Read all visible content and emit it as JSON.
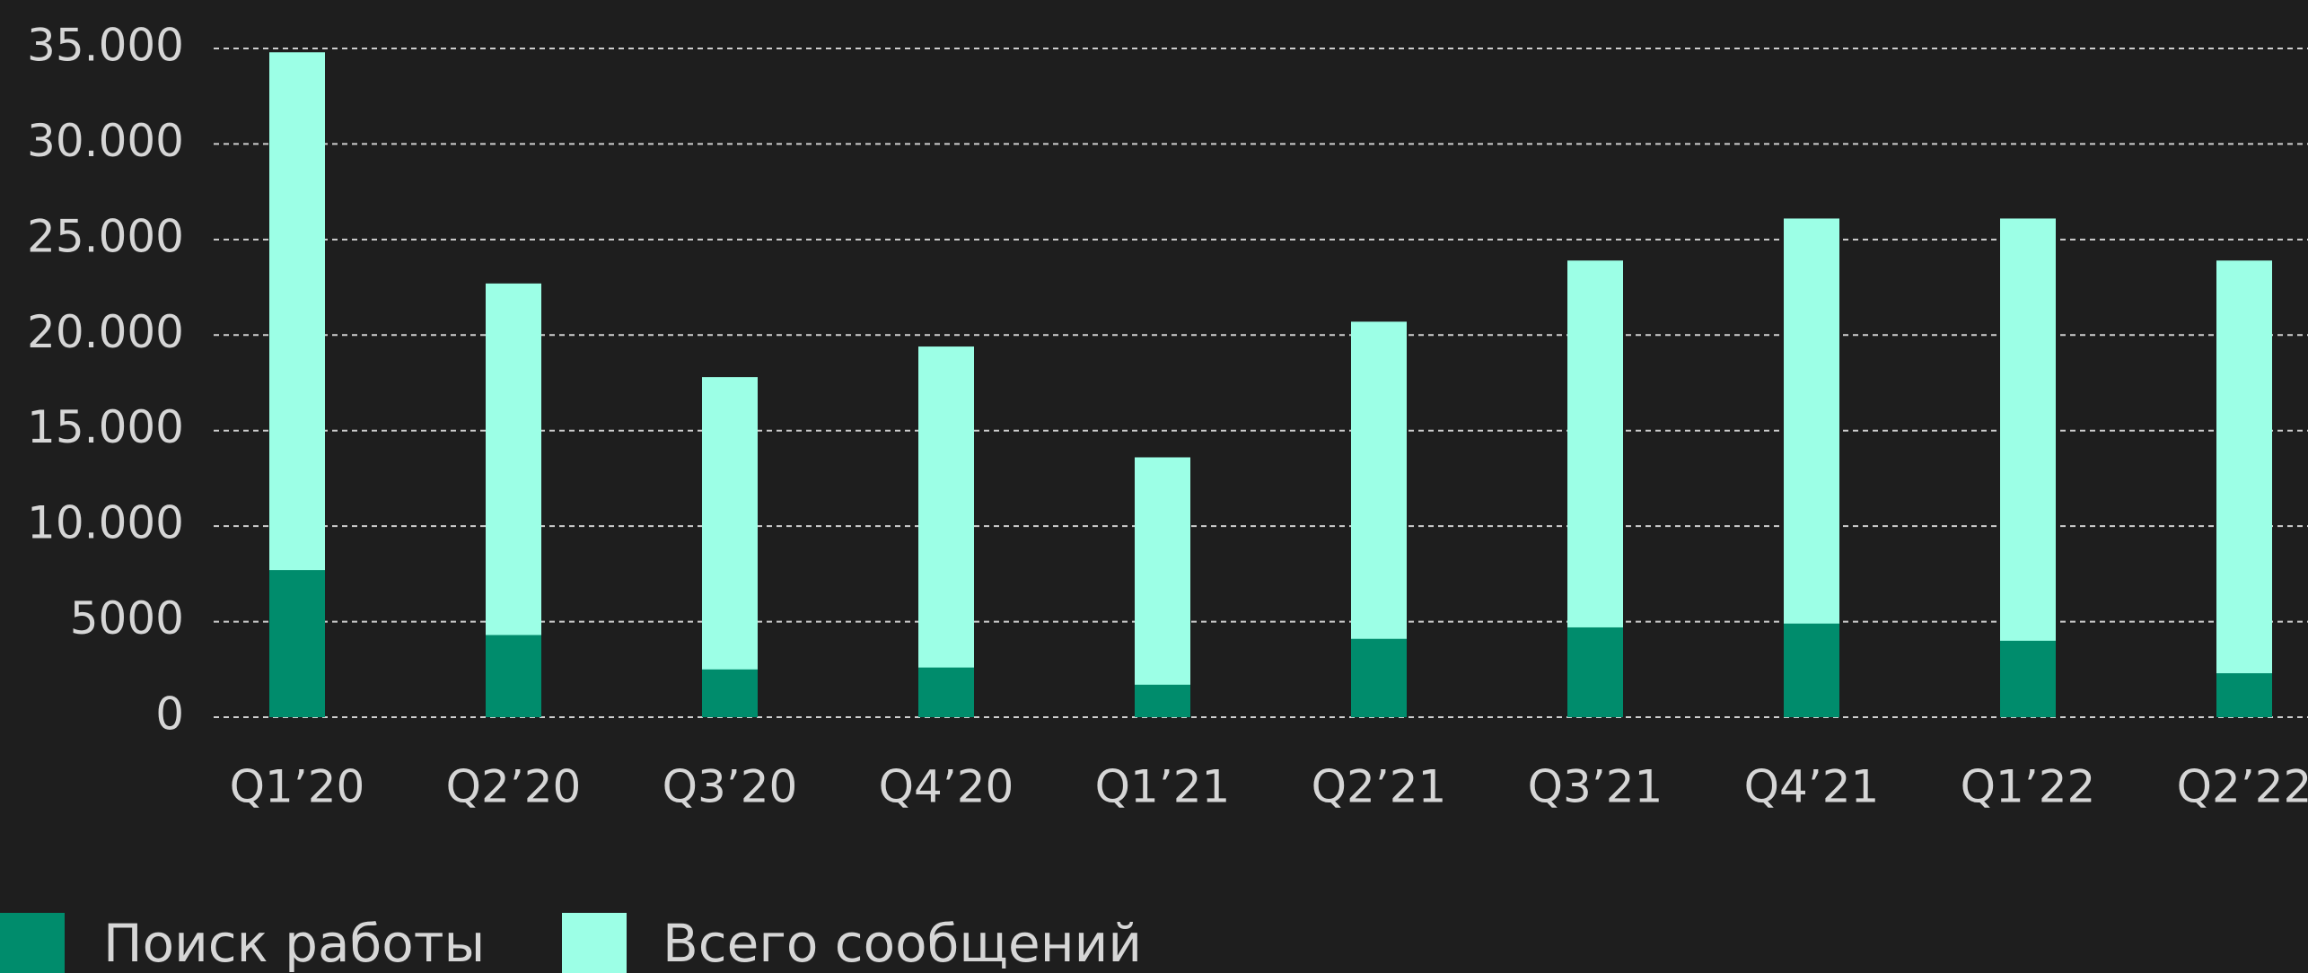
{
  "chart_data": {
    "type": "bar",
    "overlap": true,
    "categories": [
      "Q1’20",
      "Q2’20",
      "Q3’20",
      "Q4’20",
      "Q1’21",
      "Q2’21",
      "Q3’21",
      "Q4’21",
      "Q1’22",
      "Q2’22"
    ],
    "series": [
      {
        "name": "Всего сообщений",
        "color": "#9cffe6",
        "values": [
          34800,
          22700,
          17800,
          19400,
          13600,
          20700,
          23900,
          26100,
          26100,
          23900
        ]
      },
      {
        "name": "Поиск работы",
        "color": "#008c6c",
        "values": [
          7700,
          4300,
          2500,
          2600,
          1700,
          4100,
          4700,
          4900,
          4000,
          2300
        ]
      }
    ],
    "ylim": [
      0,
      35000
    ],
    "yticks": [
      0,
      5000,
      {
        "value": 10000,
        "label": "10.000"
      },
      {
        "value": 15000,
        "label": "15.000"
      },
      {
        "value": 20000,
        "label": "20.000"
      },
      {
        "value": 25000,
        "label": "25.000"
      },
      {
        "value": 30000,
        "label": "30.000"
      },
      {
        "value": 35000,
        "label": "35.000"
      }
    ],
    "grid": true
  }
}
